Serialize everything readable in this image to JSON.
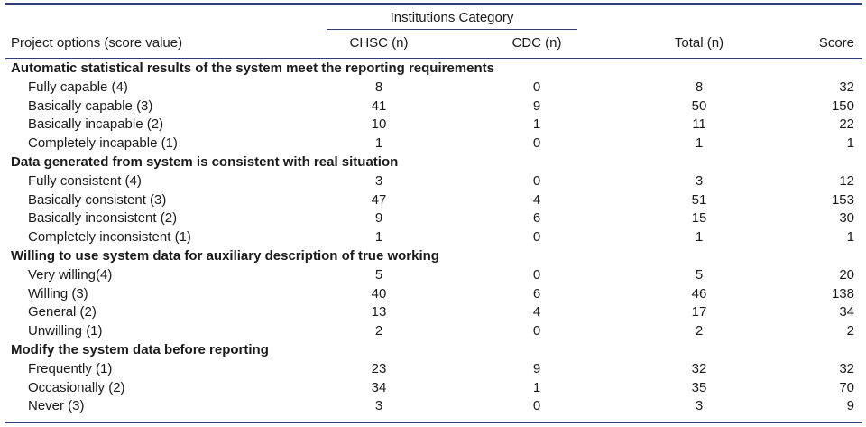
{
  "header": {
    "group_label": "Institutions Category",
    "columns": [
      "Project options (score value)",
      "CHSC (n)",
      "CDC (n)",
      "Total (n)",
      "Score"
    ]
  },
  "sections": [
    {
      "title": "Automatic statistical results of the system meet the reporting requirements",
      "rows": [
        {
          "label": "Fully capable (4)",
          "chsc": "8",
          "cdc": "0",
          "total": "8",
          "score": "32"
        },
        {
          "label": "Basically capable (3)",
          "chsc": "41",
          "cdc": "9",
          "total": "50",
          "score": "150"
        },
        {
          "label": "Basically incapable (2)",
          "chsc": "10",
          "cdc": "1",
          "total": "11",
          "score": "22"
        },
        {
          "label": "Completely incapable (1)",
          "chsc": "1",
          "cdc": "0",
          "total": "1",
          "score": "1"
        }
      ]
    },
    {
      "title": "Data generated from system is consistent with real situation",
      "rows": [
        {
          "label": "Fully consistent (4)",
          "chsc": "3",
          "cdc": "0",
          "total": "3",
          "score": "12"
        },
        {
          "label": "Basically consistent (3)",
          "chsc": "47",
          "cdc": "4",
          "total": "51",
          "score": "153"
        },
        {
          "label": "Basically inconsistent (2)",
          "chsc": "9",
          "cdc": "6",
          "total": "15",
          "score": "30"
        },
        {
          "label": "Completely inconsistent (1)",
          "chsc": "1",
          "cdc": "0",
          "total": "1",
          "score": "1"
        }
      ]
    },
    {
      "title": "Willing to use system data for auxiliary description of true working",
      "rows": [
        {
          "label": "Very willing(4)",
          "chsc": "5",
          "cdc": "0",
          "total": "5",
          "score": "20"
        },
        {
          "label": "Willing (3)",
          "chsc": "40",
          "cdc": "6",
          "total": "46",
          "score": "138"
        },
        {
          "label": "General (2)",
          "chsc": "13",
          "cdc": "4",
          "total": "17",
          "score": "34"
        },
        {
          "label": "Unwilling (1)",
          "chsc": "2",
          "cdc": "0",
          "total": "2",
          "score": "2"
        }
      ]
    },
    {
      "title": "Modify the system data before reporting",
      "rows": [
        {
          "label": "Frequently (1)",
          "chsc": "23",
          "cdc": "9",
          "total": "32",
          "score": "32"
        },
        {
          "label": "Occasionally (2)",
          "chsc": "34",
          "cdc": "1",
          "total": "35",
          "score": "70"
        },
        {
          "label": "Never (3)",
          "chsc": "3",
          "cdc": "0",
          "total": "3",
          "score": "9"
        }
      ]
    }
  ]
}
